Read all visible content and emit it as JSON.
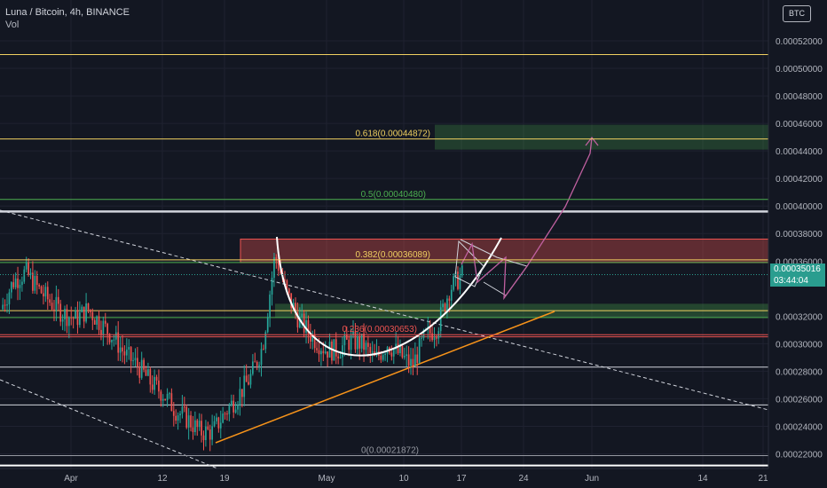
{
  "header": {
    "symbol": "Luna / Bitcoin, 4h, BINANCE",
    "indicator": "Vol",
    "currency_badge": "BTC"
  },
  "last_price": {
    "value": "0.00035016",
    "countdown": "03:44:04"
  },
  "colors": {
    "background": "#131722",
    "grid": "#1f2230",
    "candle_up": "#26a69a",
    "candle_down": "#ef5350",
    "fib_0618": "#f0d060",
    "fib_05": "#4caf50",
    "fib_0382": "#f0d060",
    "fib_0236": "#ef5350",
    "fib_0": "#9598a1",
    "support_trend": "#f7931a",
    "cup_curve": "#ffffff",
    "projection": "#c060a0",
    "price_tag": "#2a9d8f"
  },
  "chart_data": {
    "type": "candlestick",
    "title": "Luna / Bitcoin, 4h, BINANCE",
    "ylabel": "BTC",
    "ylim": [
      0.00021,
      0.00054
    ],
    "x_ticks": [
      "Apr",
      "12",
      "19",
      "May",
      "10",
      "17",
      "24",
      "Jun",
      "14",
      "21"
    ],
    "y_ticks": [
      "0.00052000",
      "0.00050000",
      "0.00048000",
      "0.00046000",
      "0.00044000",
      "0.00042000",
      "0.00040000",
      "0.00038000",
      "0.00036000",
      "0.00032000",
      "0.00030000",
      "0.00028000",
      "0.00026000",
      "0.00024000",
      "0.00022000"
    ],
    "price_path": [
      0.000325,
      0.000345,
      0.000352,
      0.00034,
      0.00033,
      0.000322,
      0.000318,
      0.000325,
      0.000315,
      0.000305,
      0.000292,
      0.000284,
      0.000272,
      0.000264,
      0.000252,
      0.000245,
      0.000236,
      0.000236,
      0.00025,
      0.000262,
      0.000275,
      0.000298,
      0.000365,
      0.000335,
      0.000316,
      0.000305,
      0.000296,
      0.000295,
      0.000302,
      0.0003,
      0.000288,
      0.0003,
      0.000292,
      0.000284,
      0.000305,
      0.000312,
      0.00034,
      0.00035
    ],
    "fibonacci": [
      {
        "label": "0.618(0.00044872)",
        "value": 0.00044872
      },
      {
        "label": "0.5(0.00040480)",
        "value": 0.0004048
      },
      {
        "label": "0.382(0.00036089)",
        "value": 0.00036089
      },
      {
        "label": "0.236(0.00030653)",
        "value": 0.00030653
      },
      {
        "label": "0(0.00021872)",
        "value": 0.00021872
      }
    ],
    "horizontal_levels": [
      0.00051,
      0.000396,
      0.000359,
      0.000324,
      0.000319,
      0.000305,
      0.000283,
      0.0002555,
      0.0002115
    ],
    "zones": [
      {
        "name": "resistance",
        "from": 0.000359,
        "to": 0.000376
      },
      {
        "name": "target",
        "from": 0.000441,
        "to": 0.000459
      },
      {
        "name": "support",
        "from": 0.000319,
        "to": 0.000329
      }
    ]
  }
}
